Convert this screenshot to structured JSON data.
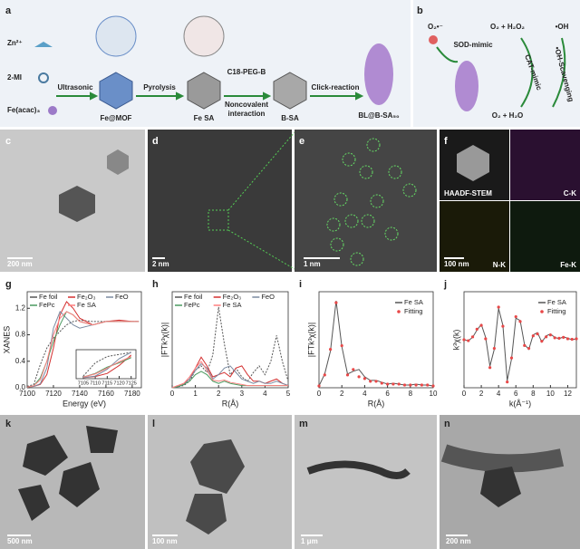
{
  "figure": {
    "panel_labels": [
      "a",
      "b",
      "c",
      "d",
      "e",
      "f",
      "g",
      "h",
      "i",
      "j",
      "k",
      "l",
      "m",
      "n"
    ],
    "scheme_a": {
      "reagents": [
        "Zn²⁺",
        "2-MI",
        "Fe(acac)₃"
      ],
      "steps": [
        "Ultrasonic",
        "Pyrolysis",
        "C18-PEG-B",
        "Noncovalent",
        "interaction",
        "Click-reaction"
      ],
      "products": [
        "Fe@MOF",
        "Fe SA",
        "B-SA",
        "BL@B-SA₅₀"
      ]
    },
    "scheme_b": {
      "texts": [
        "O₂•⁻",
        "SOD-mimic",
        "O₂ + H₂O₂",
        "•OH",
        "CAT-mimic",
        "•OH-Scavenging",
        "O₂ + H₂O"
      ]
    },
    "scale_bars": [
      "200 nm",
      "2 nm",
      "1 nm",
      "100 nm",
      "500 nm",
      "100 nm",
      "1 μm",
      "200 nm"
    ],
    "mapping": [
      "HAADF-STEM",
      "C-K",
      "N-K",
      "Fe-K"
    ]
  },
  "chart_data": [
    {
      "type": "line",
      "xlabel": "Energy (eV)",
      "ylabel": "XANES",
      "x": [
        7100,
        7105,
        7110,
        7115,
        7120,
        7125,
        7130,
        7135,
        7140,
        7150,
        7160,
        7170,
        7180,
        7185
      ],
      "xlim": [
        7100,
        7187
      ],
      "xticks": [
        7100,
        7120,
        7140,
        7160,
        7180
      ],
      "ylim": [
        0,
        1.45
      ],
      "yticks": [
        {
          "value": 0,
          "label": "0.0"
        },
        0.4,
        0.8,
        1.2
      ],
      "legend": "top",
      "series": [
        {
          "name": "Fe foil",
          "color": "#555555",
          "dash": true,
          "values": [
            0.02,
            0.05,
            0.35,
            0.6,
            0.75,
            0.85,
            0.95,
            1.0,
            1.02,
            1.0,
            1.0,
            1.0,
            1.0,
            1.0
          ]
        },
        {
          "name": "Fe₂O₃",
          "color": "#d43030",
          "values": [
            0.01,
            0.02,
            0.05,
            0.2,
            0.6,
            1.1,
            1.3,
            1.2,
            1.05,
            0.95,
            1.0,
            1.02,
            1.0,
            1.0
          ]
        },
        {
          "name": "FeO",
          "color": "#7a8aa0",
          "values": [
            0.01,
            0.02,
            0.06,
            0.3,
            0.9,
            1.15,
            1.05,
            0.95,
            0.9,
            0.95,
            1.0,
            1.0,
            1.0,
            1.0
          ]
        },
        {
          "name": "FePc",
          "color": "#4a9a60",
          "values": [
            0.01,
            0.03,
            0.15,
            0.4,
            0.7,
            0.95,
            1.15,
            1.1,
            1.0,
            0.95,
            1.0,
            1.0,
            1.0,
            1.0
          ]
        },
        {
          "name": "Fe SA",
          "color": "#ff7f7f",
          "values": [
            0.01,
            0.03,
            0.12,
            0.4,
            0.8,
            1.05,
            1.15,
            1.1,
            1.0,
            0.95,
            1.0,
            1.0,
            1.0,
            1.0
          ]
        }
      ]
    },
    {
      "type": "line",
      "x": [
        7105,
        7110,
        7115,
        7120,
        7125
      ],
      "xlim": [
        7102,
        7127
      ],
      "xticks": [
        7105,
        7110,
        7115,
        7120,
        7125
      ],
      "ylim": [
        0,
        0.55
      ],
      "series": [
        {
          "color": "#555555",
          "dash": true,
          "values": [
            0.05,
            0.3,
            0.42,
            0.46,
            0.5
          ]
        },
        {
          "color": "#d43030",
          "values": [
            0.02,
            0.04,
            0.1,
            0.25,
            0.45
          ]
        },
        {
          "color": "#7a8aa0",
          "values": [
            0.02,
            0.05,
            0.18,
            0.38,
            0.5
          ]
        },
        {
          "color": "#4a9a60",
          "values": [
            0.03,
            0.1,
            0.22,
            0.3,
            0.4
          ]
        },
        {
          "color": "#ff7f7f",
          "values": [
            0.03,
            0.09,
            0.2,
            0.32,
            0.42
          ]
        }
      ]
    },
    {
      "type": "line",
      "xlabel": "R(Å)",
      "ylabel": "|FTk³χ(k)|",
      "x": [
        0,
        0.25,
        0.5,
        0.75,
        1,
        1.25,
        1.5,
        1.75,
        2,
        2.25,
        2.5,
        2.75,
        3,
        3.25,
        3.5,
        3.75,
        4,
        4.25,
        4.5,
        4.75,
        5
      ],
      "xlim": [
        0,
        5
      ],
      "xticks": [
        0,
        1,
        2,
        3,
        4,
        5
      ],
      "ylim": [
        0,
        4.4
      ],
      "legend": "top",
      "series": [
        {
          "name": "Fe foil",
          "color": "#555555",
          "dash": true,
          "values": [
            0,
            0.05,
            0.1,
            0.3,
            0.8,
            1.0,
            0.7,
            1.5,
            3.7,
            2.0,
            0.6,
            0.9,
            0.5,
            0.3,
            0.7,
            1.0,
            0.6,
            1.2,
            2.4,
            1.2,
            0.3
          ]
        },
        {
          "name": "Fe₂O₃",
          "color": "#d43030",
          "values": [
            0,
            0.1,
            0.2,
            0.4,
            0.9,
            1.4,
            1.0,
            0.5,
            0.6,
            0.7,
            0.5,
            0.9,
            1.0,
            0.6,
            0.3,
            0.3,
            0.2,
            0.3,
            0.4,
            0.2,
            0.1
          ]
        },
        {
          "name": "FeO",
          "color": "#7a8aa0",
          "values": [
            0,
            0.05,
            0.15,
            0.4,
            0.8,
            1.1,
            0.9,
            0.4,
            0.6,
            0.9,
            1.0,
            0.7,
            0.4,
            0.3,
            0.2,
            0.3,
            0.2,
            0.2,
            0.3,
            0.2,
            0.1
          ]
        },
        {
          "name": "FePc",
          "color": "#4a9a60",
          "values": [
            0,
            0.05,
            0.15,
            0.3,
            0.6,
            0.75,
            0.6,
            0.3,
            0.2,
            0.3,
            0.2,
            0.15,
            0.1,
            0.1,
            0.1,
            0.1,
            0.1,
            0.1,
            0.1,
            0.1,
            0.1
          ]
        },
        {
          "name": "Fe SA",
          "color": "#ff7f7f",
          "values": [
            0,
            0.1,
            0.2,
            0.5,
            0.9,
            1.2,
            0.8,
            0.35,
            0.3,
            0.35,
            0.25,
            0.2,
            0.15,
            0.1,
            0.1,
            0.1,
            0.1,
            0.1,
            0.1,
            0.1,
            0.1
          ]
        }
      ]
    },
    {
      "type": "line",
      "xlabel": "R(Å)",
      "ylabel": "|FTk³χ(k)|",
      "x": [
        0,
        0.5,
        1,
        1.5,
        2,
        2.5,
        3,
        3.5,
        4,
        4.5,
        5,
        5.5,
        6,
        6.5,
        7,
        7.5,
        8,
        8.5,
        9,
        9.5,
        10
      ],
      "xlim": [
        0,
        10
      ],
      "xticks": [
        0,
        2,
        4,
        6,
        8,
        10
      ],
      "ylim": [
        0,
        1.05
      ],
      "legend": "upper right",
      "series": [
        {
          "name": "Fe SA",
          "color": "#555555",
          "values": [
            0.02,
            0.15,
            0.4,
            0.95,
            0.45,
            0.15,
            0.18,
            0.2,
            0.12,
            0.08,
            0.08,
            0.06,
            0.04,
            0.05,
            0.04,
            0.03,
            0.03,
            0.04,
            0.03,
            0.03,
            0.02
          ]
        },
        {
          "name": "Fitting",
          "color": "#e84848",
          "marker": "dot",
          "values": [
            0.02,
            0.14,
            0.42,
            0.93,
            0.46,
            0.14,
            0.2,
            0.12,
            0.1,
            0.07,
            0.07,
            0.05,
            0.04,
            0.04,
            0.04,
            0.03,
            0.03,
            0.03,
            0.03,
            0.03,
            0.02
          ]
        }
      ]
    },
    {
      "type": "line",
      "xlabel": "k(Å⁻¹)",
      "ylabel": "k³χ(k)",
      "x": [
        0,
        0.5,
        1,
        1.5,
        2,
        2.5,
        3,
        3.5,
        4,
        4.5,
        5,
        5.5,
        6,
        6.5,
        7,
        7.5,
        8,
        8.5,
        9,
        9.5,
        10,
        10.5,
        11,
        11.5,
        12,
        12.5,
        13
      ],
      "xlim": [
        0,
        13
      ],
      "xticks": [
        0,
        2,
        4,
        6,
        8,
        10,
        12
      ],
      "ylim": [
        -1,
        1
      ],
      "legend": "upper right",
      "series": [
        {
          "name": "Fe SA",
          "color": "#555555",
          "values": [
            0,
            -0.02,
            0.05,
            0.2,
            0.32,
            0.05,
            -0.55,
            -0.2,
            0.65,
            0.3,
            -0.85,
            -0.4,
            0.45,
            0.4,
            -0.1,
            -0.2,
            0.1,
            0.15,
            -0.05,
            0.08,
            0.12,
            0.05,
            0.02,
            0.06,
            0.03,
            0,
            0.02
          ]
        },
        {
          "name": "Fitting",
          "color": "#e84848",
          "marker": "dot",
          "values": [
            0,
            -0.02,
            0.06,
            0.22,
            0.3,
            0.02,
            -0.58,
            -0.18,
            0.68,
            0.28,
            -0.88,
            -0.38,
            0.48,
            0.38,
            -0.12,
            -0.18,
            0.08,
            0.12,
            -0.03,
            0.06,
            0.1,
            0.04,
            0.03,
            0.05,
            0.02,
            0.01,
            0.02
          ]
        }
      ]
    }
  ]
}
